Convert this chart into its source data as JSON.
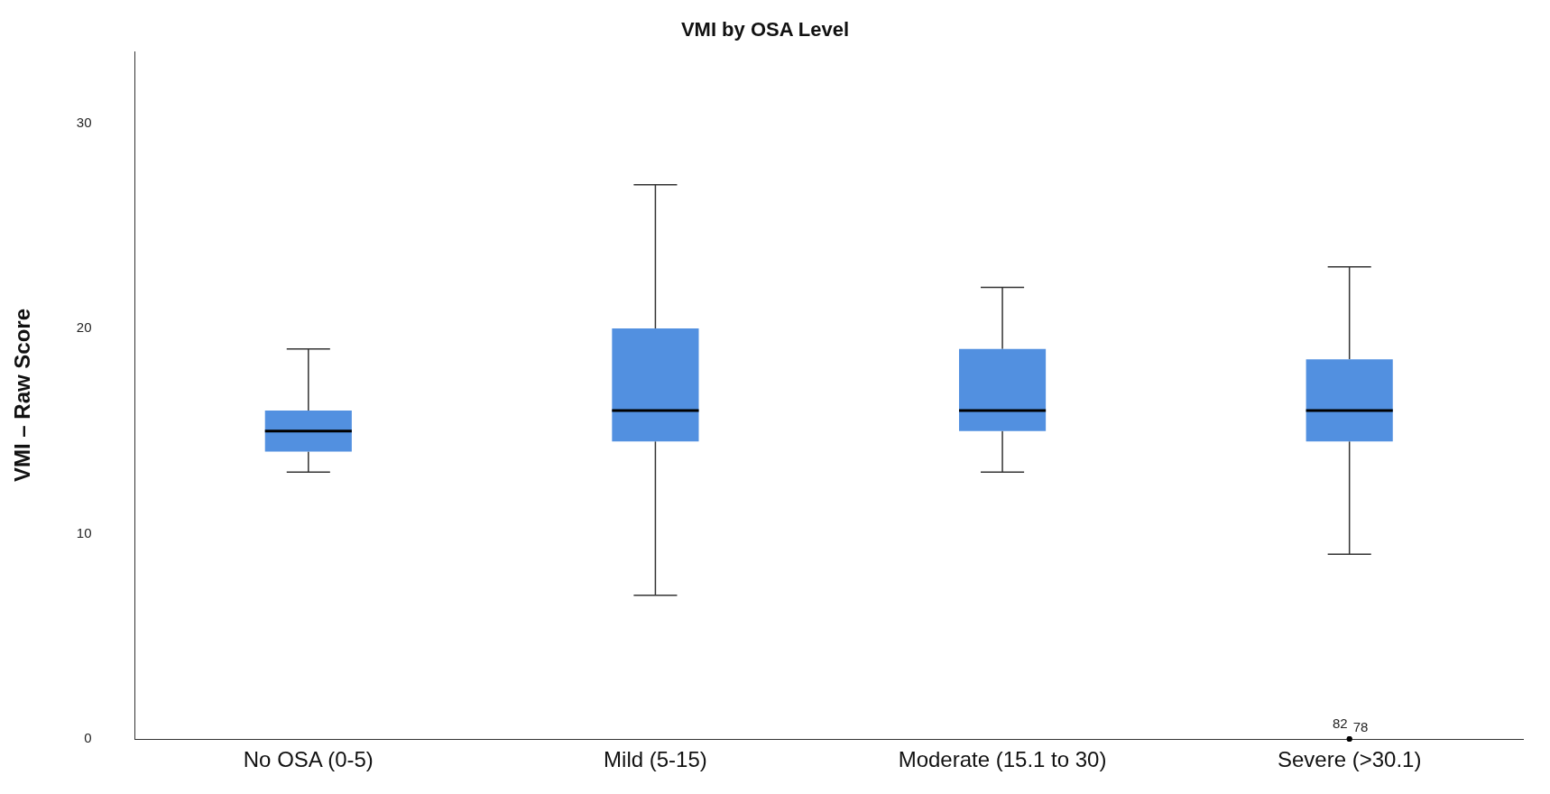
{
  "chart_data": {
    "type": "box",
    "title": "VMI by OSA Level",
    "ylabel": "VMI – Raw Score",
    "categories": [
      "No OSA (0-5)",
      "Mild (5-15)",
      "Moderate (15.1 to 30)",
      "Severe (>30.1)"
    ],
    "color": "#5290e0",
    "boxes": [
      {
        "low": 13,
        "q1": 14,
        "median": 15,
        "q3": 16,
        "high": 19
      },
      {
        "low": 7,
        "q1": 14.5,
        "median": 16,
        "q3": 20,
        "high": 27
      },
      {
        "low": 13,
        "q1": 15,
        "median": 16,
        "q3": 19,
        "high": 22
      },
      {
        "low": 9,
        "q1": 14.5,
        "median": 16,
        "q3": 18.5,
        "high": 23,
        "outliers": [
          0,
          0
        ]
      }
    ],
    "ylim": [
      0,
      33.5
    ],
    "yticks": [
      0,
      10,
      20,
      30
    ],
    "grid": false,
    "legend": false,
    "annotations": [
      "82",
      "78"
    ]
  }
}
